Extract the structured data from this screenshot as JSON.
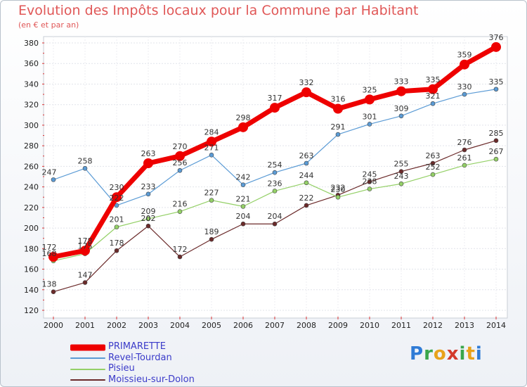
{
  "header": {
    "title": "Evolution des Impôts locaux pour la Commune par Habitant",
    "subtitle": "(en € et par an)"
  },
  "brand": {
    "text": "Proxiti",
    "letters": [
      {
        "ch": "P",
        "color": "#2f7bd6"
      },
      {
        "ch": "r",
        "color": "#3aa64b"
      },
      {
        "ch": "o",
        "color": "#e8a21a"
      },
      {
        "ch": "x",
        "color": "#d33a2c"
      },
      {
        "ch": "i",
        "color": "#3aa64b"
      },
      {
        "ch": "t",
        "color": "#e8a21a"
      },
      {
        "ch": "i",
        "color": "#2f7bd6"
      }
    ]
  },
  "chart_data": {
    "type": "line",
    "title": "Evolution des Impôts locaux pour la Commune par Habitant",
    "subtitle": "(en € et par an)",
    "xlabel": "",
    "ylabel": "",
    "x": [
      "2000",
      "2001",
      "2002",
      "2003",
      "2004",
      "2005",
      "2006",
      "2007",
      "2008",
      "2009",
      "2010",
      "2011",
      "2012",
      "2013",
      "2014"
    ],
    "ylim": [
      120,
      380
    ],
    "yticks": [
      120,
      140,
      160,
      180,
      200,
      220,
      240,
      260,
      280,
      300,
      320,
      340,
      360,
      380
    ],
    "grid": true,
    "legend_position": "bottom-left",
    "series": [
      {
        "name": "PRIMARETTE",
        "color": "#ee0000",
        "width": 7,
        "marker": 7,
        "values": [
          172,
          178,
          230,
          263,
          270,
          284,
          298,
          317,
          332,
          316,
          325,
          333,
          335,
          359,
          376
        ]
      },
      {
        "name": "Revel-Tourdan",
        "color": "#5b9bd5",
        "width": 1.2,
        "marker": 3,
        "values": [
          247,
          258,
          222,
          233,
          256,
          271,
          242,
          254,
          263,
          291,
          301,
          309,
          321,
          330,
          335
        ]
      },
      {
        "name": "Pisieu",
        "color": "#94d067",
        "width": 1.2,
        "marker": 3,
        "values": [
          168,
          175,
          201,
          209,
          216,
          227,
          221,
          236,
          244,
          230,
          238,
          243,
          252,
          261,
          267
        ]
      },
      {
        "name": "Moissieu-sur-Dolon",
        "color": "#6b2a2a",
        "width": 1.2,
        "marker": 3,
        "values": [
          138,
          147,
          178,
          202,
          172,
          189,
          204,
          204,
          222,
          232,
          245,
          255,
          263,
          276,
          285
        ]
      }
    ]
  }
}
